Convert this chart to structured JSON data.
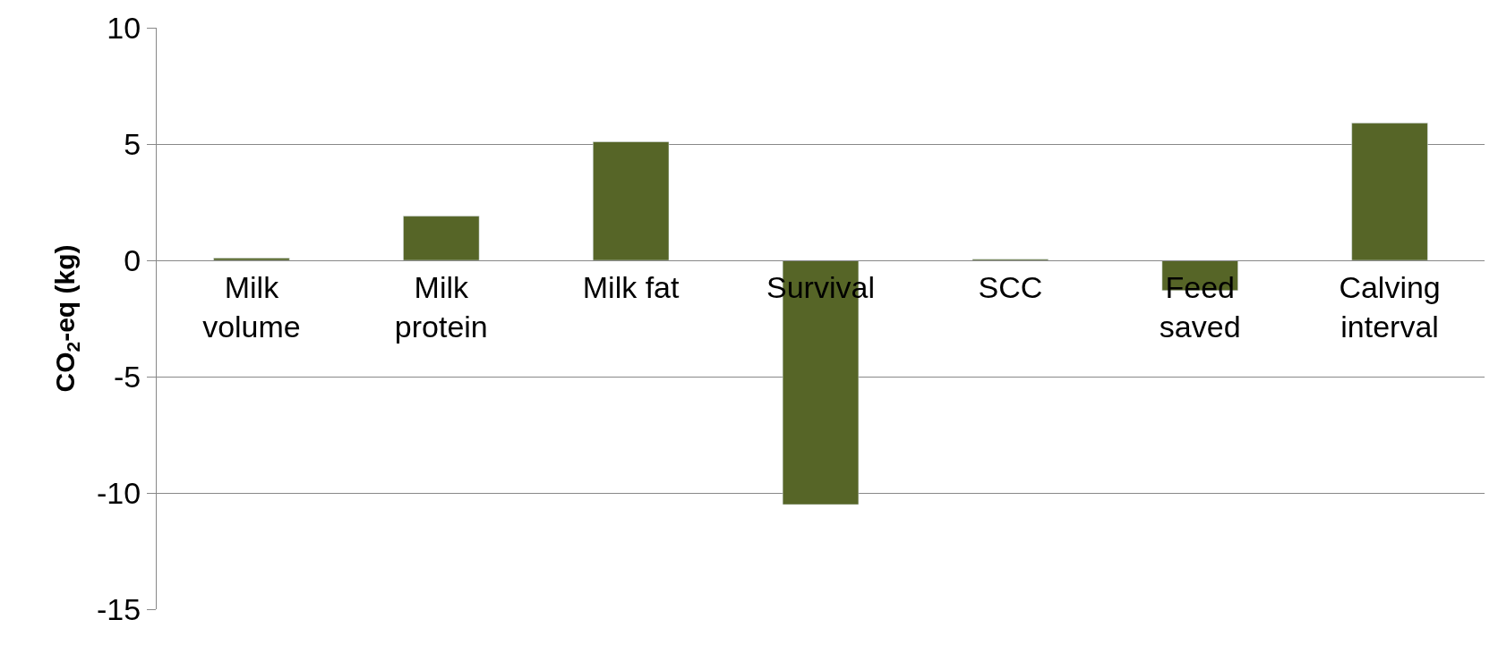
{
  "chart_data": {
    "type": "bar",
    "ylabel": "CO$_{2}$-eq (kg)",
    "categories": [
      "Milk\nvolume",
      "Milk\nprotein",
      "Milk fat",
      "Survival",
      "SCC",
      "Feed\nsaved",
      "Calving\ninterval"
    ],
    "values": [
      0.1,
      1.9,
      5.1,
      -10.5,
      0.05,
      -1.3,
      5.9
    ],
    "color": "#566527",
    "ylim": [
      -15,
      10
    ],
    "yticks": [
      -15,
      -10,
      -5,
      0,
      5,
      10
    ],
    "grid": "y"
  }
}
